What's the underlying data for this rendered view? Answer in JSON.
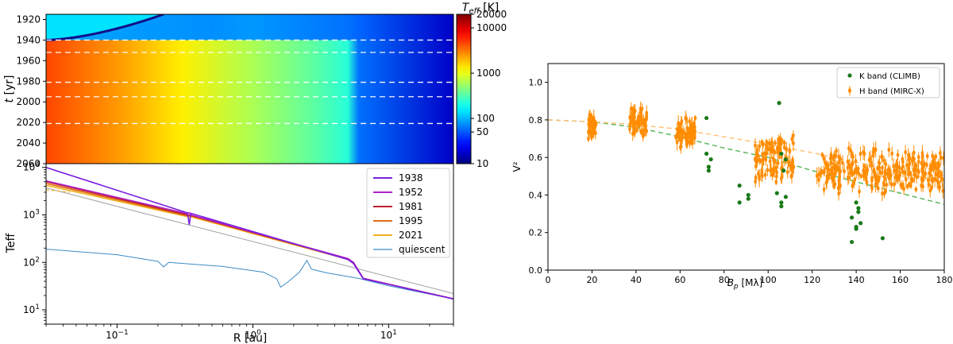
{
  "chart_data": [
    {
      "type": "heatmap",
      "ylabel_math": {
        "var": "t",
        "unit": "[yr]"
      },
      "xscale": "log",
      "ylim": [
        2060,
        1915
      ],
      "yticks": [
        "1920",
        "1940",
        "1960",
        "1980",
        "2000",
        "2020",
        "2040",
        "2060"
      ],
      "dashed_lines_t": [
        1940,
        1952,
        1981,
        1995,
        2021
      ],
      "colorbar": {
        "label_var": "T",
        "label_sub": "eff",
        "label_unit": "[K]",
        "scale": "log",
        "range": [
          10,
          20000
        ],
        "ticks": [
          "20000",
          "10000",
          "1000",
          "100",
          "50",
          "10"
        ],
        "colormap": "jet"
      },
      "profile_bands_K": [
        {
          "R": 0.03,
          "T": 4600
        },
        {
          "R": 0.1,
          "T": 2500
        },
        {
          "R": 0.3,
          "T": 1300
        },
        {
          "R": 1.0,
          "T": 620
        },
        {
          "R": 3.0,
          "T": 330
        },
        {
          "R": 5.0,
          "T": 230
        },
        {
          "R": 6.0,
          "T": 60
        },
        {
          "R": 30,
          "T": 17
        }
      ],
      "cold_region": {
        "t_start": 1915,
        "t_end": 1940,
        "T": 80
      }
    },
    {
      "type": "line",
      "xlabel": "R [au]",
      "ylabel": "Teff",
      "xscale": "log",
      "yscale": "log",
      "xlim": [
        0.03,
        30
      ],
      "ylim": [
        5,
        12000
      ],
      "xticks": [
        {
          "v": 0.1,
          "base": "10",
          "exp": "−1"
        },
        {
          "v": 1,
          "base": "10",
          "exp": "0"
        },
        {
          "v": 10,
          "base": "10",
          "exp": "1"
        }
      ],
      "yticks": [
        {
          "v": 10,
          "base": "10",
          "exp": "1"
        },
        {
          "v": 100,
          "base": "10",
          "exp": "2"
        },
        {
          "v": 1000,
          "base": "10",
          "exp": "3"
        },
        {
          "v": 10000,
          "base": "10",
          "exp": "4"
        }
      ],
      "legend_position": "top-right",
      "series": [
        {
          "name": "1938",
          "color": "#7a1fe0",
          "points": [
            [
              0.03,
              10000
            ],
            [
              0.33,
              1100
            ],
            [
              0.34,
              620
            ],
            [
              0.35,
              1080
            ],
            [
              5.0,
              115
            ],
            [
              5.5,
              95
            ],
            [
              6.5,
              45
            ],
            [
              30,
              17
            ]
          ]
        },
        {
          "name": "1952",
          "color": "#b020c8",
          "points": [
            [
              0.03,
              5200
            ],
            [
              0.33,
              1060
            ],
            [
              0.34,
              1120
            ],
            [
              0.35,
              1000
            ],
            [
              5.0,
              120
            ],
            [
              5.5,
              100
            ],
            [
              6.5,
              46
            ],
            [
              30,
              17
            ]
          ]
        },
        {
          "name": "1981",
          "color": "#c0202a",
          "points": [
            [
              0.03,
              5000
            ],
            [
              0.33,
              1000
            ],
            [
              0.35,
              980
            ],
            [
              5.0,
              120
            ],
            [
              5.5,
              100
            ],
            [
              6.5,
              46
            ],
            [
              30,
              17
            ]
          ]
        },
        {
          "name": "1995",
          "color": "#e06a10",
          "points": [
            [
              0.03,
              4600
            ],
            [
              0.33,
              960
            ],
            [
              0.35,
              950
            ],
            [
              5.0,
              118
            ],
            [
              5.5,
              98
            ],
            [
              6.5,
              46
            ],
            [
              30,
              17
            ]
          ]
        },
        {
          "name": "2021",
          "color": "#f0b020",
          "points": [
            [
              0.03,
              4200
            ],
            [
              0.33,
              920
            ],
            [
              0.35,
              910
            ],
            [
              5.0,
              116
            ],
            [
              5.5,
              96
            ],
            [
              6.5,
              46
            ],
            [
              30,
              17
            ]
          ]
        },
        {
          "name": "quiescent",
          "color": "#3d8cc8",
          "points": [
            [
              0.03,
              190
            ],
            [
              0.1,
              145
            ],
            [
              0.2,
              105
            ],
            [
              0.22,
              80
            ],
            [
              0.24,
              100
            ],
            [
              0.6,
              82
            ],
            [
              1.2,
              62
            ],
            [
              1.5,
              45
            ],
            [
              1.6,
              30
            ],
            [
              1.8,
              38
            ],
            [
              2.2,
              62
            ],
            [
              2.5,
              110
            ],
            [
              2.7,
              72
            ],
            [
              3.5,
              60
            ],
            [
              6,
              46
            ],
            [
              10,
              32
            ],
            [
              30,
              17
            ]
          ]
        }
      ],
      "reference_line": {
        "color": "#a0a0a0",
        "points": [
          [
            0.03,
            3700
          ],
          [
            30,
            22
          ]
        ]
      }
    },
    {
      "type": "scatter",
      "xlabel_math": {
        "var": "B",
        "sub": "p",
        "unit": "[Mλ]"
      },
      "ylabel": "V²",
      "xlim": [
        0,
        180
      ],
      "ylim": [
        0,
        1.1
      ],
      "xticks": [
        0,
        20,
        40,
        60,
        80,
        100,
        120,
        140,
        160,
        180
      ],
      "yticks": [
        "0.0",
        "0.2",
        "0.4",
        "0.6",
        "0.8",
        "1.0"
      ],
      "legend_position": "top-right",
      "series": [
        {
          "name": "K band (CLIMB)",
          "color": "#1a7a1a",
          "points": [
            [
              72,
              0.81
            ],
            [
              72,
              0.62
            ],
            [
              73,
              0.55
            ],
            [
              73,
              0.53
            ],
            [
              74,
              0.59
            ],
            [
              87,
              0.45
            ],
            [
              87,
              0.36
            ],
            [
              91,
              0.4
            ],
            [
              91,
              0.38
            ],
            [
              105,
              0.89
            ],
            [
              104,
              0.41
            ],
            [
              106,
              0.62
            ],
            [
              106,
              0.36
            ],
            [
              106,
              0.34
            ],
            [
              107,
              0.53
            ],
            [
              108,
              0.59
            ],
            [
              108,
              0.39
            ],
            [
              138,
              0.28
            ],
            [
              138,
              0.15
            ],
            [
              140,
              0.36
            ],
            [
              140,
              0.23
            ],
            [
              140,
              0.22
            ],
            [
              141,
              0.33
            ],
            [
              141,
              0.31
            ],
            [
              142,
              0.25
            ],
            [
              152,
              0.17
            ]
          ]
        },
        {
          "name": "H band (MIRC-X)",
          "color": "#ff8c00",
          "clusters": [
            {
              "x": [
                18,
                22
              ],
              "y": [
                0.68,
                0.84
              ]
            },
            {
              "x": [
                37,
                45
              ],
              "y": [
                0.7,
                0.88
              ]
            },
            {
              "x": [
                58,
                67
              ],
              "y": [
                0.64,
                0.82
              ]
            },
            {
              "x": [
                94,
                112
              ],
              "y": [
                0.45,
                0.74
              ]
            },
            {
              "x": [
                122,
                180
              ],
              "y": [
                0.4,
                0.66
              ]
            }
          ]
        }
      ],
      "model_curves": [
        {
          "color": "#5cb85c",
          "style": "dashed",
          "points": [
            [
              0,
              0.8
            ],
            [
              20,
              0.79
            ],
            [
              40,
              0.76
            ],
            [
              60,
              0.71
            ],
            [
              80,
              0.65
            ],
            [
              100,
              0.6
            ],
            [
              120,
              0.53
            ],
            [
              140,
              0.47
            ],
            [
              160,
              0.41
            ],
            [
              180,
              0.35
            ]
          ]
        },
        {
          "color": "#ffc27a",
          "style": "dashed",
          "points": [
            [
              0,
              0.8
            ],
            [
              20,
              0.79
            ],
            [
              40,
              0.775
            ],
            [
              60,
              0.75
            ],
            [
              80,
              0.71
            ],
            [
              100,
              0.67
            ],
            [
              120,
              0.625
            ],
            [
              140,
              0.575
            ],
            [
              160,
              0.52
            ],
            [
              180,
              0.47
            ]
          ]
        }
      ]
    }
  ]
}
